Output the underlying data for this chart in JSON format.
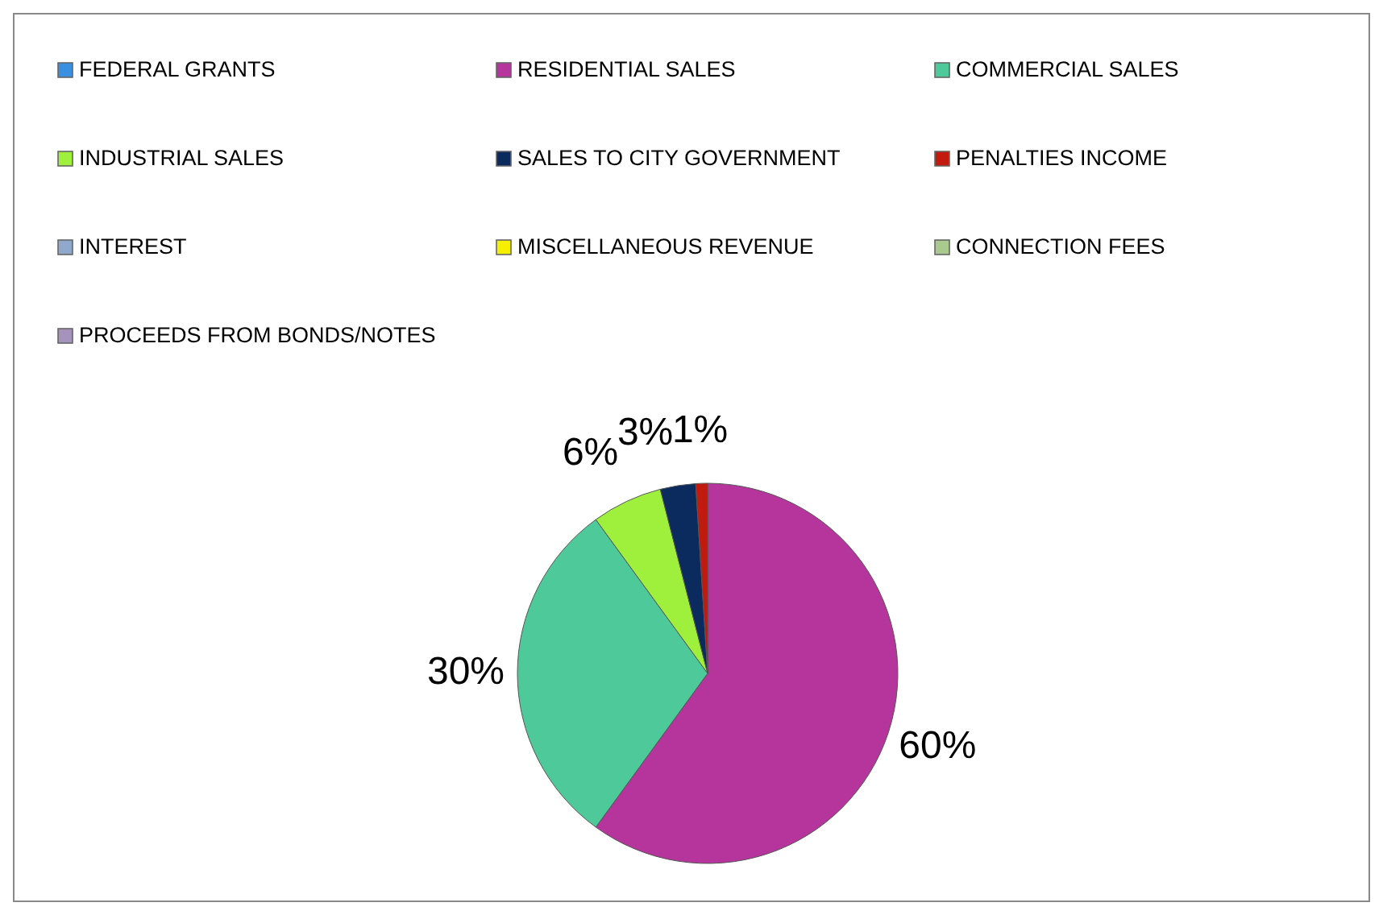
{
  "chart_data": {
    "type": "pie",
    "categories": [
      "FEDERAL GRANTS",
      "RESIDENTIAL SALES",
      "COMMERCIAL SALES",
      "INDUSTRIAL SALES",
      "SALES TO CITY GOVERNMENT",
      "PENALTIES INCOME",
      "INTEREST",
      "MISCELLANEOUS REVENUE",
      "CONNECTION FEES",
      "PROCEEDS FROM BONDS/NOTES"
    ],
    "values": [
      0,
      60,
      30,
      6,
      3,
      1,
      0,
      0,
      0,
      0
    ],
    "value_labels": [
      null,
      "60%",
      "30%",
      "6%",
      "3%",
      "1%",
      null,
      null,
      null,
      null
    ],
    "colors": [
      "#3a8fe0",
      "#b5359c",
      "#4ec99a",
      "#9ef03c",
      "#0b2a5e",
      "#c21a0e",
      "#90a8cc",
      "#f5f000",
      "#a9c98f",
      "#a593bd"
    ],
    "legend": "top"
  }
}
